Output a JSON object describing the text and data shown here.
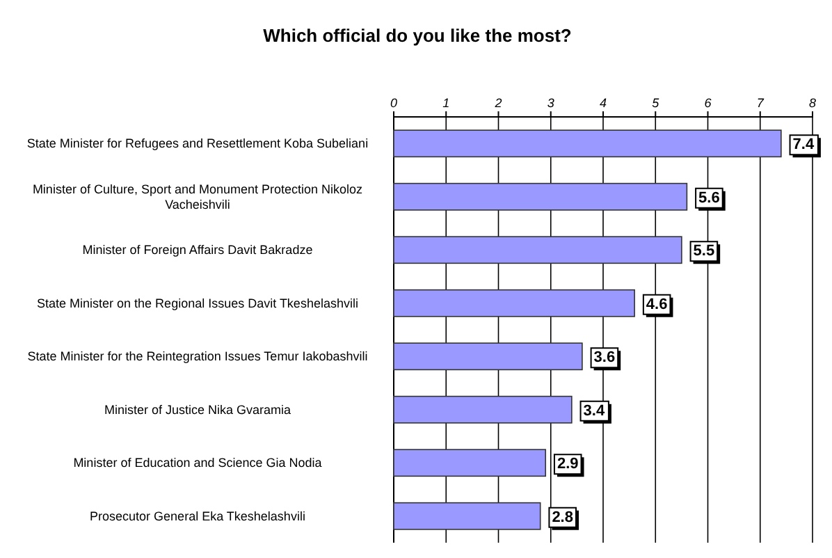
{
  "chart_data": {
    "type": "bar",
    "orientation": "horizontal",
    "title": "Which official do you like the most?",
    "categories": [
      "State Minister for Refugees and Resettlement Koba Subeliani",
      "Minister of Culture, Sport and Monument Protection Nikoloz Vacheishvili",
      "Minister of Foreign Affairs Davit Bakradze",
      "State Minister on the Regional Issues Davit Tkeshelashvili",
      "State Minister for the Reintegration Issues Temur Iakobashvili",
      "Minister of Justice Nika Gvaramia",
      "Minister of Education and Science Gia Nodia",
      "Prosecutor General Eka Tkeshelashvili"
    ],
    "values": [
      7.4,
      5.6,
      5.5,
      4.6,
      3.6,
      3.4,
      2.9,
      2.8
    ],
    "color": "#9999ff",
    "xlim": [
      0,
      8
    ],
    "xticks": [
      0,
      1,
      2,
      3,
      4,
      5,
      6,
      7,
      8
    ],
    "grid": "x",
    "data_labels": true
  }
}
